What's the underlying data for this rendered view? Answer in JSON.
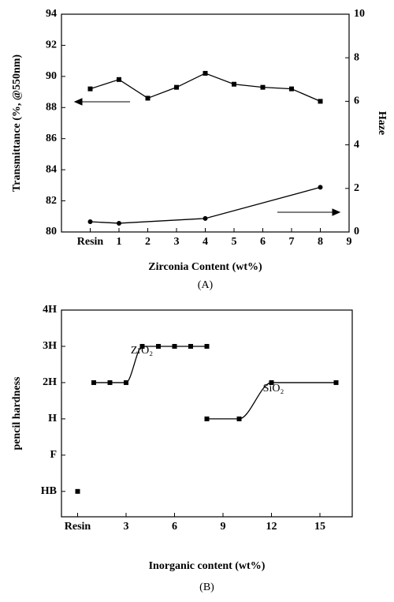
{
  "chart_data": [
    {
      "type": "line",
      "xlabel": "Zirconia Content (wt%)",
      "ylabel": "Transmittance (%, @550nm)",
      "y2label": "Haze",
      "caption": "(A)",
      "x": [
        0,
        1,
        2,
        3,
        4,
        5,
        6,
        7,
        8
      ],
      "xlim": [
        -1,
        9
      ],
      "xticks": [
        {
          "value": 0,
          "label": "Resin"
        },
        1,
        2,
        3,
        4,
        5,
        6,
        7,
        8,
        9
      ],
      "ylim": [
        80,
        94
      ],
      "yticks": [
        80,
        82,
        84,
        86,
        88,
        90,
        92,
        94
      ],
      "y2lim": [
        0,
        10
      ],
      "y2ticks": [
        0,
        2,
        4,
        6,
        8,
        10
      ],
      "series": [
        {
          "color": "#000000",
          "marker": "square",
          "line": true,
          "values": [
            89.2,
            89.8,
            88.6,
            89.3,
            90.2,
            89.5,
            89.3,
            89.2,
            88.4
          ]
        },
        {
          "color": "#000000",
          "marker": "circle",
          "line": true,
          "axis": "y2",
          "x": [
            0,
            1,
            4,
            8
          ],
          "values": [
            0.47,
            0.4,
            0.62,
            2.05
          ]
        }
      ]
    },
    {
      "type": "scatter",
      "curve": "smooth",
      "xlabel": "Inorganic content (wt%)",
      "ylabel": "pencil hardness",
      "caption": "(B)",
      "xlim": [
        -1,
        17
      ],
      "xticks": [
        {
          "value": 0,
          "label": "Resin"
        },
        3,
        6,
        9,
        12,
        15
      ],
      "ylim": [
        -0.7,
        5
      ],
      "yticks": [
        {
          "value": 0,
          "label": "HB"
        },
        {
          "value": 1,
          "label": "F"
        },
        {
          "value": 2,
          "label": "H"
        },
        {
          "value": 3,
          "label": "2H"
        },
        {
          "value": 4,
          "label": "3H"
        },
        {
          "value": 5,
          "label": "4H"
        }
      ],
      "series": [
        {
          "name": "ZrO₂",
          "color": "#000000",
          "marker": "square",
          "line": true,
          "x": [
            1,
            2,
            3,
            4,
            5,
            6,
            7,
            8
          ],
          "values": [
            3,
            3,
            3,
            4,
            4,
            4,
            4,
            4
          ]
        },
        {
          "name": "SiO₂",
          "color": "#000000",
          "marker": "square",
          "line": true,
          "x": [
            8,
            10,
            12,
            16
          ],
          "values": [
            2,
            2,
            3,
            3
          ]
        },
        {
          "color": "#000000",
          "marker": "square",
          "line": false,
          "x": [
            0
          ],
          "values": [
            0
          ]
        }
      ]
    }
  ]
}
